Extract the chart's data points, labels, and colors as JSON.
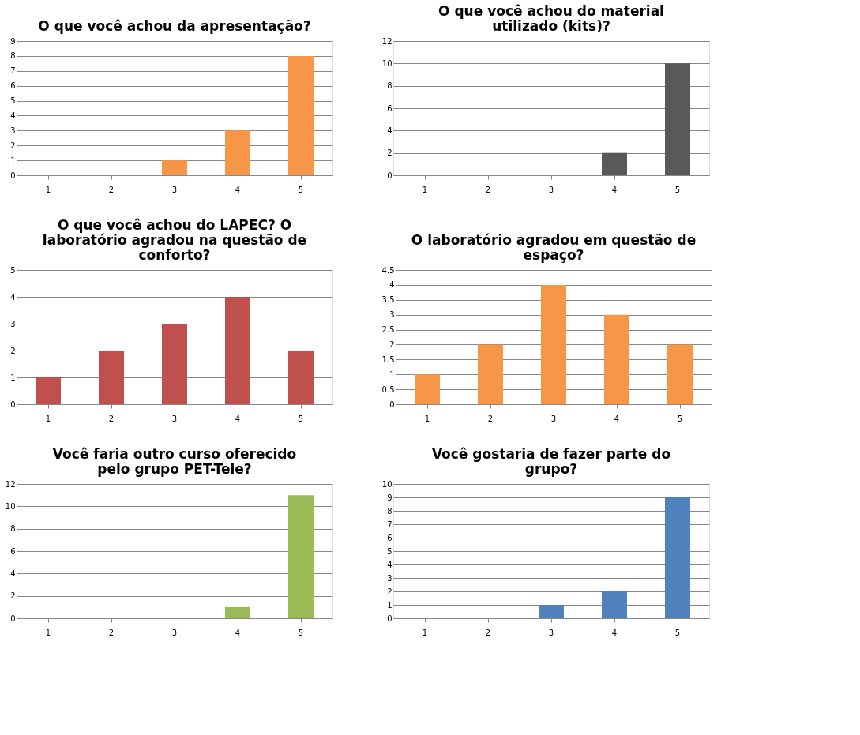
{
  "chart_data": [
    {
      "type": "bar",
      "title": "O que você achou da apresentação?",
      "categories": [
        "1",
        "2",
        "3",
        "4",
        "5"
      ],
      "values": [
        0,
        0,
        1,
        3,
        8
      ],
      "color": "#f79646",
      "ylim": [
        0,
        9
      ],
      "yticks": [
        0,
        1,
        2,
        3,
        4,
        5,
        6,
        7,
        8,
        9
      ],
      "grid": "y"
    },
    {
      "type": "bar",
      "title": "O que você achou do material utilizado (kits)?",
      "categories": [
        "1",
        "2",
        "3",
        "4",
        "5"
      ],
      "values": [
        0,
        0,
        0,
        2,
        10
      ],
      "color": "#595959",
      "ylim": [
        0,
        12
      ],
      "yticks": [
        0,
        2,
        4,
        6,
        8,
        10,
        12
      ],
      "grid": "y"
    },
    {
      "type": "bar",
      "title": "O que você achou do LAPEC? O laboratório agradou na questão de conforto?",
      "categories": [
        "1",
        "2",
        "3",
        "4",
        "5"
      ],
      "values": [
        1,
        2,
        3,
        4,
        2
      ],
      "color": "#c0504d",
      "ylim": [
        0,
        5
      ],
      "yticks": [
        0,
        1,
        2,
        3,
        4,
        5
      ],
      "grid": "y"
    },
    {
      "type": "bar",
      "title": "O laboratório agradou em questão de espaço?",
      "categories": [
        "1",
        "2",
        "3",
        "4",
        "5"
      ],
      "values": [
        1,
        2,
        4,
        3,
        2
      ],
      "color": "#f79646",
      "ylim": [
        0,
        4.5
      ],
      "yticks": [
        0,
        0.5,
        1,
        1.5,
        2,
        2.5,
        3,
        3.5,
        4,
        4.5
      ],
      "grid": "y"
    },
    {
      "type": "bar",
      "title": "Você faria outro curso oferecido pelo grupo PET-Tele?",
      "categories": [
        "1",
        "2",
        "3",
        "4",
        "5"
      ],
      "values": [
        0,
        0,
        0,
        1,
        11
      ],
      "color": "#9bbb59",
      "ylim": [
        0,
        12
      ],
      "yticks": [
        0,
        2,
        4,
        6,
        8,
        10,
        12
      ],
      "grid": "y"
    },
    {
      "type": "bar",
      "title": "Você gostaria de fazer parte do grupo?",
      "categories": [
        "1",
        "2",
        "3",
        "4",
        "5"
      ],
      "values": [
        0,
        0,
        1,
        2,
        9
      ],
      "color": "#4f81bd",
      "ylim": [
        0,
        10
      ],
      "yticks": [
        0,
        1,
        2,
        3,
        4,
        5,
        6,
        7,
        8,
        9,
        10
      ],
      "grid": "y"
    }
  ]
}
